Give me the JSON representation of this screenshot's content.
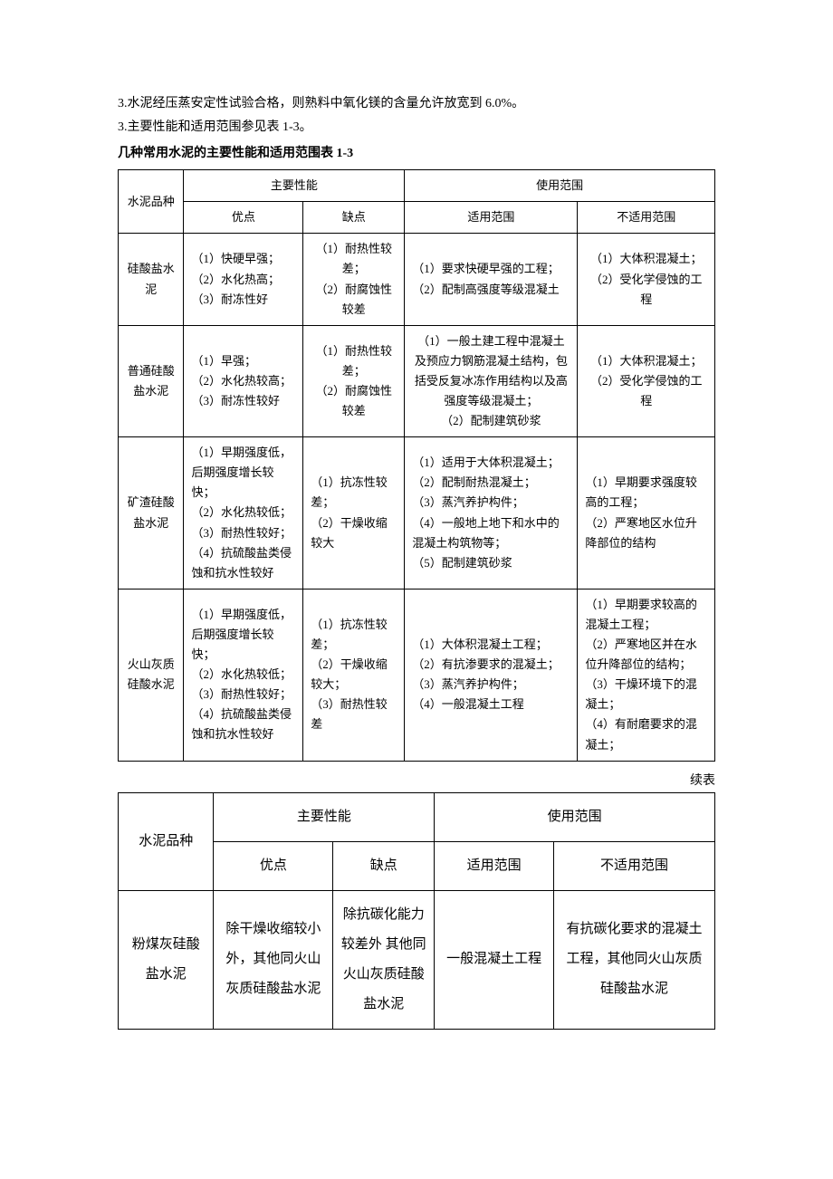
{
  "intro": {
    "line1": "3.水泥经压蒸安定性试验合格，则熟料中氧化镁的含量允许放宽到 6.0%。",
    "line2": "3.主要性能和适用范围参见表 1-3。",
    "title": "几种常用水泥的主要性能和适用范围表 1-3"
  },
  "table1": {
    "headers": {
      "col1": "水泥品种",
      "group1": "主要性能",
      "group2": "使用范围",
      "sub1": "优点",
      "sub2": "缺点",
      "sub3": "适用范围",
      "sub4": "不适用范围"
    },
    "rows": [
      {
        "name": "硅酸盐水泥",
        "adv": "（1）快硬早强；\n（2）水化热高；\n（3）耐冻性好",
        "dis": "（1）耐热性较差；\n（2）耐腐蚀性较差",
        "fit": "（1）要求快硬早强的工程；\n（2）配制高强度等级混凝土",
        "unfit": "（1）大体积混凝土；\n（2）受化学侵蚀的工程"
      },
      {
        "name": "普通硅酸盐水泥",
        "adv": "（1）早强；\n（2）水化热较高；\n（3）耐冻性较好",
        "dis": "（1）耐热性较差；\n（2）耐腐蚀性较差",
        "fit": "（1）一般土建工程中混凝土及预应力钢筋混凝土结构，包括受反复冰冻作用结构以及高强度等级混凝土；\n（2）配制建筑砂浆",
        "unfit": "（1）大体积混凝土；\n（2）受化学侵蚀的工程"
      },
      {
        "name": "矿渣硅酸盐水泥",
        "adv": "（1）早期强度低，后期强度增长较快；\n（2）水化热较低；\n（3）耐热性较好；\n（4）抗硫酸盐类侵蚀和抗水性较好",
        "dis": "（1）抗冻性较差；\n（2）干燥收缩较大",
        "fit": "（1）适用于大体积混凝土；\n（2）配制耐热混凝土；\n（3）蒸汽养护构件；\n（4）一般地上地下和水中的混凝土构筑物等；\n（5）配制建筑砂浆",
        "unfit": "（1）早期要求强度较高的工程；\n（2）严寒地区水位升降部位的结构"
      },
      {
        "name": "火山灰质硅酸水泥",
        "adv": "（1）早期强度低，后期强度增长较快；\n（2）水化热较低；\n（3）耐热性较好；\n（4）抗硫酸盐类侵蚀和抗水性较好",
        "dis": "（1）抗冻性较差；\n（2）干燥收缩较大；\n（3）耐热性较差",
        "fit": "（1）大体积混凝土工程；\n（2）有抗渗要求的混凝土；\n（3）蒸汽养护构件；\n（4）一般混凝土工程",
        "unfit": "（1）早期要求较高的混凝土工程；\n（2）严寒地区并在水位升降部位的结构；\n（3）干燥环境下的混凝土；\n（4）有耐磨要求的混凝土；"
      }
    ]
  },
  "continued_label": "续表",
  "table2": {
    "headers": {
      "col1": "水泥品种",
      "group1": "主要性能",
      "group2": "使用范围",
      "sub1": "优点",
      "sub2": "缺点",
      "sub3": "适用范围",
      "sub4": "不适用范围"
    },
    "rows": [
      {
        "name": "粉煤灰硅酸盐水泥",
        "adv": "除干燥收缩较小外，其他同火山灰质硅酸盐水泥",
        "dis": "除抗碳化能力较差外 其他同火山灰质硅酸盐水泥",
        "fit": "一般混凝土工程",
        "unfit": "有抗碳化要求的混凝土工程，其他同火山灰质硅酸盐水泥"
      }
    ]
  }
}
